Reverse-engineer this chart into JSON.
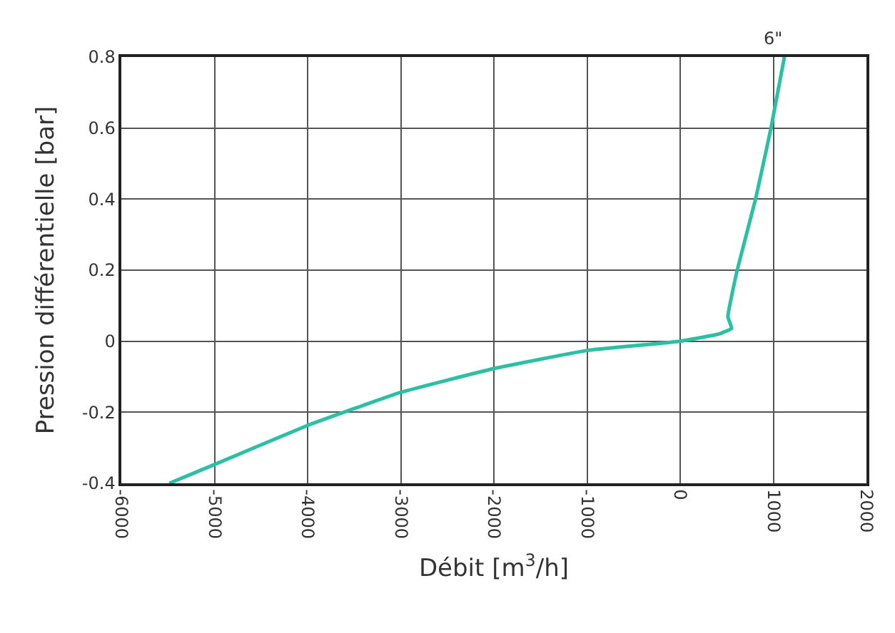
{
  "chart_data": {
    "type": "line",
    "xlabel": "Débit [m$^{3}$/h]",
    "ylabel": "Pression différentielle [bar]",
    "series": [
      {
        "color": "#2bbfa4",
        "x": [
          -5485,
          -5000,
          -4000,
          -3000,
          -2000,
          -1000,
          0,
          413,
          552,
          512,
          612,
          811,
          975,
          1119
        ],
        "values": [
          -0.4,
          -0.347,
          -0.237,
          -0.144,
          -0.077,
          -0.026,
          0,
          0.02,
          0.036,
          0.069,
          0.2,
          0.402,
          0.6,
          0.8
        ]
      }
    ],
    "annotations": [
      {
        "text": "6\"",
        "x": 1119,
        "y": 0.8
      }
    ],
    "xlim": [
      -6000,
      2000
    ],
    "xticks": [
      -6000,
      -5000,
      -4000,
      -3000,
      -2000,
      -1000,
      0,
      1000,
      2000
    ],
    "ylim": [
      -0.4,
      0.8
    ],
    "yticks": [
      -0.4,
      -0.2,
      0,
      0.2,
      0.4,
      0.6,
      0.8
    ],
    "grid": true,
    "marker": "none",
    "line_style": "solid",
    "legend": false
  }
}
